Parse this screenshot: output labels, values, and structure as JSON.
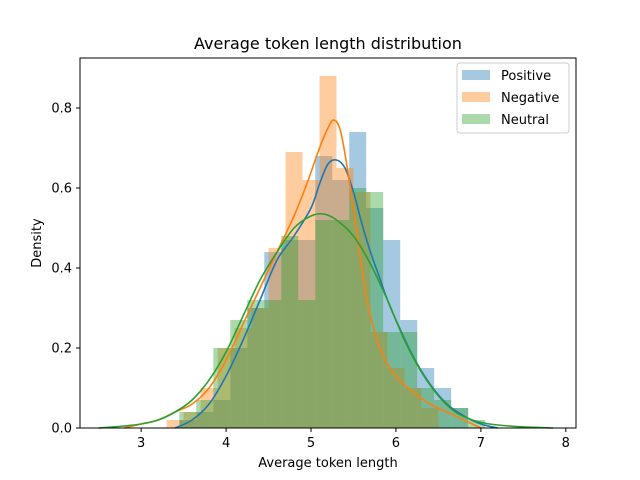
{
  "chart_data": {
    "type": "histogram",
    "title": "Average token length distribution",
    "xlabel": "Average token length",
    "ylabel": "Density",
    "xlim": [
      2.28,
      8.12
    ],
    "ylim": [
      0,
      0.925
    ],
    "xticks": [
      3,
      4,
      5,
      6,
      7,
      8
    ],
    "yticks": [
      0.0,
      0.2,
      0.4,
      0.6,
      0.8
    ],
    "grid": false,
    "legend_position": "top-right",
    "series": [
      {
        "name": "Positive",
        "color": "#1f77b4",
        "alpha": 0.4,
        "bins": [
          {
            "x0": 3.45,
            "x1": 3.65,
            "density": 0.02
          },
          {
            "x0": 3.65,
            "x1": 3.85,
            "density": 0.04
          },
          {
            "x0": 3.85,
            "x1": 4.05,
            "density": 0.07
          },
          {
            "x0": 4.05,
            "x1": 4.25,
            "density": 0.2
          },
          {
            "x0": 4.25,
            "x1": 4.45,
            "density": 0.3
          },
          {
            "x0": 4.45,
            "x1": 4.65,
            "density": 0.44
          },
          {
            "x0": 4.65,
            "x1": 4.85,
            "density": 0.47
          },
          {
            "x0": 4.85,
            "x1": 5.05,
            "density": 0.47
          },
          {
            "x0": 5.05,
            "x1": 5.25,
            "density": 0.68
          },
          {
            "x0": 5.25,
            "x1": 5.45,
            "density": 0.62
          },
          {
            "x0": 5.45,
            "x1": 5.65,
            "density": 0.74
          },
          {
            "x0": 5.65,
            "x1": 5.85,
            "density": 0.55
          },
          {
            "x0": 5.85,
            "x1": 6.05,
            "density": 0.47
          },
          {
            "x0": 6.05,
            "x1": 6.25,
            "density": 0.27
          },
          {
            "x0": 6.25,
            "x1": 6.45,
            "density": 0.15
          },
          {
            "x0": 6.45,
            "x1": 6.65,
            "density": 0.1
          },
          {
            "x0": 6.65,
            "x1": 6.85,
            "density": 0.05
          }
        ],
        "kde": [
          [
            3.4,
            0.0
          ],
          [
            3.6,
            0.02
          ],
          [
            3.8,
            0.06
          ],
          [
            4.0,
            0.13
          ],
          [
            4.2,
            0.22
          ],
          [
            4.4,
            0.32
          ],
          [
            4.6,
            0.42
          ],
          [
            4.8,
            0.48
          ],
          [
            5.0,
            0.55
          ],
          [
            5.1,
            0.61
          ],
          [
            5.2,
            0.66
          ],
          [
            5.3,
            0.67
          ],
          [
            5.4,
            0.65
          ],
          [
            5.5,
            0.59
          ],
          [
            5.6,
            0.51
          ],
          [
            5.7,
            0.44
          ],
          [
            5.8,
            0.38
          ],
          [
            5.9,
            0.32
          ],
          [
            6.0,
            0.27
          ],
          [
            6.2,
            0.18
          ],
          [
            6.4,
            0.11
          ],
          [
            6.6,
            0.06
          ],
          [
            6.8,
            0.03
          ],
          [
            7.0,
            0.01
          ],
          [
            7.2,
            0.0
          ]
        ]
      },
      {
        "name": "Negative",
        "color": "#ff7f0e",
        "alpha": 0.4,
        "bins": [
          {
            "x0": 3.3,
            "x1": 3.5,
            "density": 0.02
          },
          {
            "x0": 3.5,
            "x1": 3.7,
            "density": 0.04
          },
          {
            "x0": 3.7,
            "x1": 3.9,
            "density": 0.1
          },
          {
            "x0": 3.9,
            "x1": 4.1,
            "density": 0.2
          },
          {
            "x0": 4.1,
            "x1": 4.3,
            "density": 0.25
          },
          {
            "x0": 4.3,
            "x1": 4.5,
            "density": 0.3
          },
          {
            "x0": 4.5,
            "x1": 4.7,
            "density": 0.45
          },
          {
            "x0": 4.7,
            "x1": 4.9,
            "density": 0.69
          },
          {
            "x0": 4.9,
            "x1": 5.1,
            "density": 0.62
          },
          {
            "x0": 5.1,
            "x1": 5.3,
            "density": 0.88
          },
          {
            "x0": 5.3,
            "x1": 5.5,
            "density": 0.65
          },
          {
            "x0": 5.5,
            "x1": 5.7,
            "density": 0.59
          },
          {
            "x0": 5.7,
            "x1": 5.9,
            "density": 0.24
          },
          {
            "x0": 5.9,
            "x1": 6.1,
            "density": 0.15
          },
          {
            "x0": 6.1,
            "x1": 6.3,
            "density": 0.1
          },
          {
            "x0": 6.3,
            "x1": 6.5,
            "density": 0.05
          }
        ],
        "kde": [
          [
            2.8,
            0.0
          ],
          [
            3.0,
            0.01
          ],
          [
            3.2,
            0.02
          ],
          [
            3.4,
            0.04
          ],
          [
            3.6,
            0.06
          ],
          [
            3.8,
            0.1
          ],
          [
            4.0,
            0.17
          ],
          [
            4.2,
            0.26
          ],
          [
            4.4,
            0.35
          ],
          [
            4.6,
            0.44
          ],
          [
            4.8,
            0.53
          ],
          [
            4.95,
            0.61
          ],
          [
            5.1,
            0.7
          ],
          [
            5.2,
            0.75
          ],
          [
            5.27,
            0.77
          ],
          [
            5.35,
            0.74
          ],
          [
            5.45,
            0.62
          ],
          [
            5.55,
            0.47
          ],
          [
            5.65,
            0.33
          ],
          [
            5.75,
            0.24
          ],
          [
            5.85,
            0.18
          ],
          [
            6.0,
            0.13
          ],
          [
            6.2,
            0.09
          ],
          [
            6.4,
            0.06
          ],
          [
            6.6,
            0.04
          ],
          [
            6.8,
            0.02
          ],
          [
            7.0,
            0.0
          ]
        ]
      },
      {
        "name": "Neutral",
        "color": "#2ca02c",
        "alpha": 0.4,
        "bins": [
          {
            "x0": 3.45,
            "x1": 3.65,
            "density": 0.04
          },
          {
            "x0": 3.65,
            "x1": 3.85,
            "density": 0.07
          },
          {
            "x0": 3.85,
            "x1": 4.05,
            "density": 0.2
          },
          {
            "x0": 4.05,
            "x1": 4.25,
            "density": 0.27
          },
          {
            "x0": 4.25,
            "x1": 4.45,
            "density": 0.32
          },
          {
            "x0": 4.45,
            "x1": 4.65,
            "density": 0.32
          },
          {
            "x0": 4.65,
            "x1": 4.85,
            "density": 0.48
          },
          {
            "x0": 4.85,
            "x1": 5.05,
            "density": 0.32
          },
          {
            "x0": 5.05,
            "x1": 5.25,
            "density": 0.52
          },
          {
            "x0": 5.25,
            "x1": 5.45,
            "density": 0.52
          },
          {
            "x0": 5.45,
            "x1": 5.65,
            "density": 0.6
          },
          {
            "x0": 5.65,
            "x1": 5.85,
            "density": 0.59
          },
          {
            "x0": 5.85,
            "x1": 6.05,
            "density": 0.24
          },
          {
            "x0": 6.05,
            "x1": 6.25,
            "density": 0.24
          },
          {
            "x0": 6.25,
            "x1": 6.45,
            "density": 0.1
          },
          {
            "x0": 6.45,
            "x1": 6.65,
            "density": 0.07
          },
          {
            "x0": 6.65,
            "x1": 6.85,
            "density": 0.05
          },
          {
            "x0": 6.85,
            "x1": 7.05,
            "density": 0.02
          }
        ],
        "kde": [
          [
            2.5,
            0.0
          ],
          [
            2.8,
            0.005
          ],
          [
            3.0,
            0.01
          ],
          [
            3.2,
            0.02
          ],
          [
            3.4,
            0.04
          ],
          [
            3.6,
            0.07
          ],
          [
            3.8,
            0.12
          ],
          [
            4.0,
            0.19
          ],
          [
            4.2,
            0.28
          ],
          [
            4.4,
            0.37
          ],
          [
            4.6,
            0.44
          ],
          [
            4.8,
            0.5
          ],
          [
            5.0,
            0.53
          ],
          [
            5.15,
            0.535
          ],
          [
            5.3,
            0.52
          ],
          [
            5.5,
            0.48
          ],
          [
            5.7,
            0.41
          ],
          [
            5.9,
            0.32
          ],
          [
            6.1,
            0.22
          ],
          [
            6.3,
            0.14
          ],
          [
            6.5,
            0.08
          ],
          [
            6.7,
            0.04
          ],
          [
            6.9,
            0.02
          ],
          [
            7.1,
            0.01
          ],
          [
            7.4,
            0.004
          ],
          [
            7.85,
            0.0
          ]
        ]
      }
    ]
  }
}
